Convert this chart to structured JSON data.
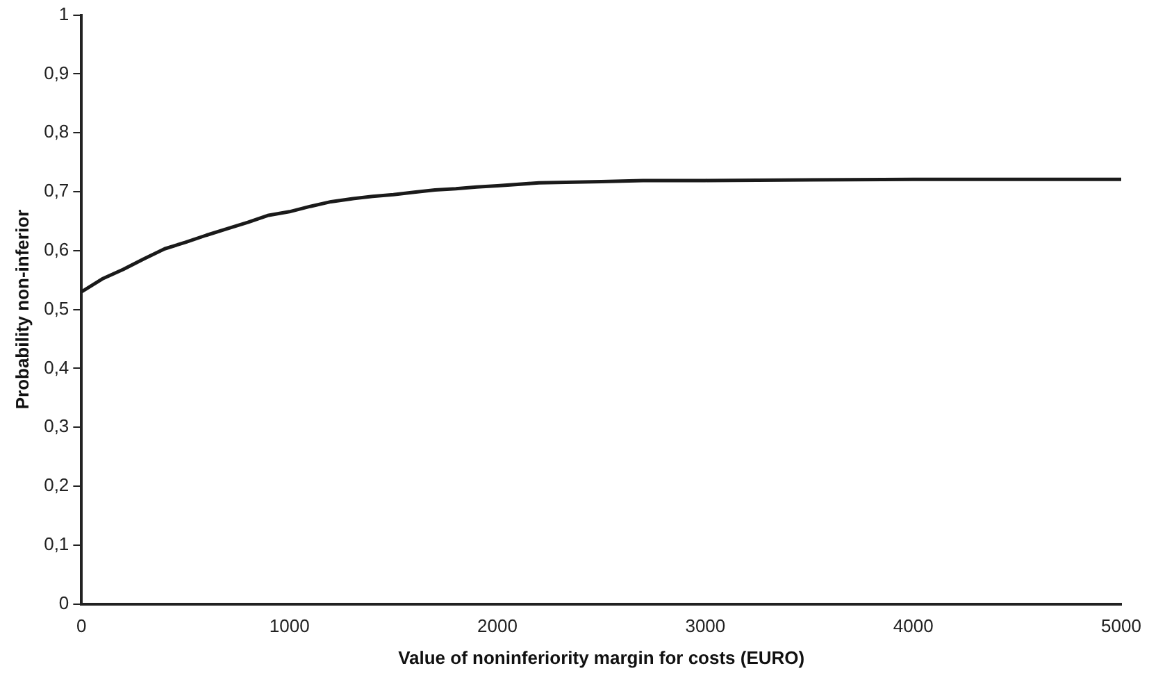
{
  "chart_data": {
    "type": "line",
    "xlabel": "Value of noninferiority margin for costs (EURO)",
    "ylabel": "Probability non-inferior",
    "x": [
      0,
      100,
      200,
      300,
      400,
      500,
      600,
      700,
      800,
      900,
      1000,
      1100,
      1200,
      1300,
      1400,
      1500,
      1600,
      1700,
      1800,
      1900,
      2000,
      2200,
      2500,
      2700,
      3000,
      3500,
      4000,
      5000
    ],
    "series": [
      {
        "color": "#1a1a1a",
        "values": [
          0.53,
          0.552,
          0.568,
          0.586,
          0.603,
          0.614,
          0.626,
          0.637,
          0.648,
          0.66,
          0.666,
          0.675,
          0.683,
          0.688,
          0.692,
          0.695,
          0.699,
          0.703,
          0.705,
          0.708,
          0.71,
          0.715,
          0.717,
          0.719,
          0.719,
          0.72,
          0.721,
          0.721
        ]
      }
    ],
    "xlim": [
      0,
      5000
    ],
    "xticks": [
      0,
      1000,
      2000,
      3000,
      4000,
      5000
    ],
    "ylim": [
      0,
      1
    ],
    "yticks": [
      0,
      {
        "value": 0.1,
        "label": "0,1"
      },
      {
        "value": 0.2,
        "label": "0,2"
      },
      {
        "value": 0.3,
        "label": "0,3"
      },
      {
        "value": 0.4,
        "label": "0,4"
      },
      {
        "value": 0.5,
        "label": "0,5"
      },
      {
        "value": 0.6,
        "label": "0,6"
      },
      {
        "value": 0.7,
        "label": "0,7"
      },
      {
        "value": 0.8,
        "label": "0,8"
      },
      {
        "value": 0.9,
        "label": "0,9"
      },
      1
    ],
    "grid": false,
    "legend": false,
    "marker": "none",
    "line_style": "solid"
  }
}
